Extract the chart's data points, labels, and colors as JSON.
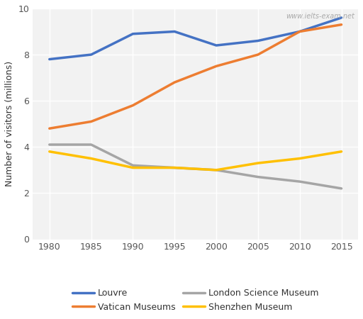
{
  "years": [
    1980,
    1985,
    1990,
    1995,
    2000,
    2005,
    2010,
    2015
  ],
  "series": {
    "Louvre": {
      "values": [
        7.8,
        8.0,
        8.9,
        9.0,
        8.4,
        8.6,
        9.0,
        9.6
      ],
      "color": "#4472C4"
    },
    "Vatican Museums": {
      "values": [
        4.8,
        5.1,
        5.8,
        6.8,
        7.5,
        8.0,
        9.0,
        9.3
      ],
      "color": "#ED7D31"
    },
    "London Science Museum": {
      "values": [
        4.1,
        4.1,
        3.2,
        3.1,
        3.0,
        2.7,
        2.5,
        2.2
      ],
      "color": "#A5A5A5"
    },
    "Shenzhen Museum": {
      "values": [
        3.8,
        3.5,
        3.1,
        3.1,
        3.0,
        3.3,
        3.5,
        3.8
      ],
      "color": "#FFC000"
    }
  },
  "ylabel": "Number of visitors (millions)",
  "ylim": [
    0,
    10
  ],
  "yticks": [
    0,
    2,
    4,
    6,
    8,
    10
  ],
  "xticks": [
    1980,
    1985,
    1990,
    1995,
    2000,
    2005,
    2010,
    2015
  ],
  "watermark": "www.ielts-exam.net",
  "plot_bg_color": "#f2f2f2",
  "fig_bg_color": "#ffffff",
  "grid_color": "#ffffff",
  "legend_order": [
    "Louvre",
    "Vatican Museums",
    "London Science Museum",
    "Shenzhen Museum"
  ],
  "legend_ncol": 2,
  "line_width": 2.5
}
